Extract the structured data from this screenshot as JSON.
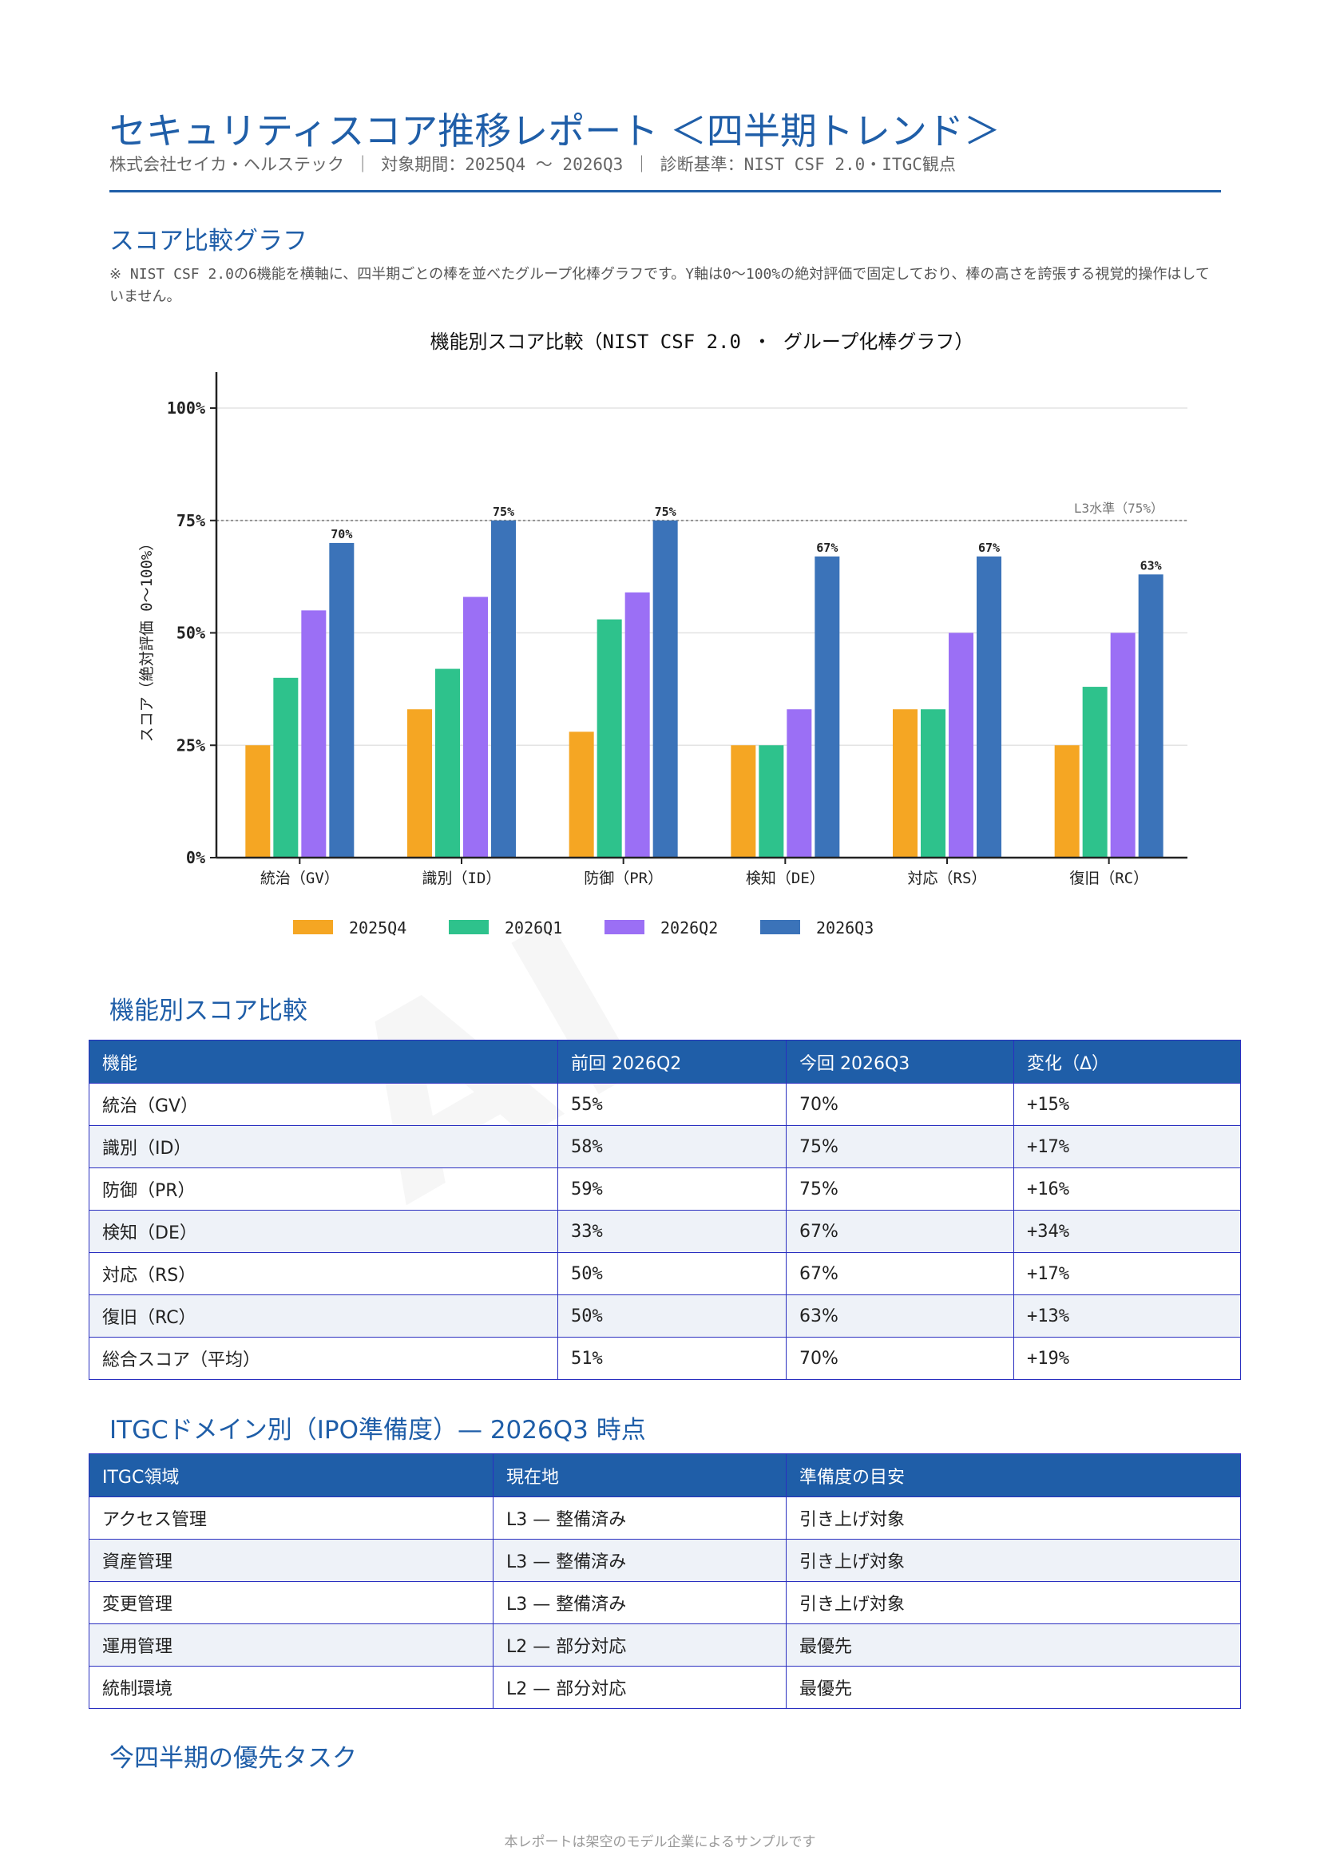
{
  "header": {
    "title": "セキュリティスコア推移レポート ＜四半期トレンド＞",
    "subtitle": "株式会社セイカ・ヘルステック ｜ 対象期間：2025Q4 〜 2026Q3 ｜ 診断基準：NIST CSF 2.0・ITGC観点"
  },
  "sections": {
    "chart_heading": "スコア比較グラフ",
    "chart_note": "※ NIST CSF 2.0の6機能を横軸に、四半期ごとの棒を並べたグループ化棒グラフです。Y軸は0〜100%の絶対評価で固定しており、棒の高さを誇張する視覚的操作はしていません。",
    "compare_heading": "機能別スコア比較",
    "itgc_heading": "ITGCドメイン別（IPO準備度）— 2026Q3 時点",
    "tasks_heading": "今四半期の優先タスク"
  },
  "chart_data": {
    "type": "bar",
    "title": "機能別スコア比較（NIST CSF 2.0 ・ グループ化棒グラフ）",
    "ylabel": "スコア（絶対評価 0〜100%）",
    "xlabel": "",
    "ylim": [
      0,
      108
    ],
    "yticks": [
      0,
      25,
      50,
      75,
      100
    ],
    "ytick_labels": [
      "0%",
      "25%",
      "50%",
      "75%",
      "100%"
    ],
    "grid": true,
    "legend_position": "bottom",
    "categories": [
      "統治（GV）",
      "識別（ID）",
      "防御（PR）",
      "検知（DE）",
      "対応（RS）",
      "復旧（RC）"
    ],
    "series": [
      {
        "name": "2025Q4",
        "color": "#f5a623",
        "values": [
          25,
          33,
          28,
          25,
          33,
          25
        ]
      },
      {
        "name": "2026Q1",
        "color": "#2ec28c",
        "values": [
          40,
          42,
          53,
          25,
          33,
          38
        ]
      },
      {
        "name": "2026Q2",
        "color": "#9b6ff5",
        "values": [
          55,
          58,
          59,
          33,
          50,
          50
        ]
      },
      {
        "name": "2026Q3",
        "color": "#3b73b9",
        "values": [
          70,
          75,
          75,
          67,
          67,
          63
        ]
      }
    ],
    "value_labels_series": "2026Q3",
    "value_labels": [
      "70%",
      "75%",
      "75%",
      "67%",
      "67%",
      "63%"
    ],
    "reference_line": {
      "value": 75,
      "label": "L3水準（75%）"
    }
  },
  "compare_table": {
    "headers": [
      "機能",
      "前回 2026Q2",
      "今回 2026Q3",
      "変化（Δ）"
    ],
    "rows": [
      [
        "統治（GV）",
        "55%",
        "70%",
        "+15%"
      ],
      [
        "識別（ID）",
        "58%",
        "75%",
        "+17%"
      ],
      [
        "防御（PR）",
        "59%",
        "75%",
        "+16%"
      ],
      [
        "検知（DE）",
        "33%",
        "67%",
        "+34%"
      ],
      [
        "対応（RS）",
        "50%",
        "67%",
        "+17%"
      ],
      [
        "復旧（RC）",
        "50%",
        "63%",
        "+13%"
      ],
      [
        "総合スコア（平均）",
        "51%",
        "70%",
        "+19%"
      ]
    ]
  },
  "itgc_table": {
    "headers": [
      "ITGC領域",
      "現在地",
      "準備度の目安"
    ],
    "rows": [
      [
        "アクセス管理",
        "L3 — 整備済み",
        "引き上げ対象"
      ],
      [
        "資産管理",
        "L3 — 整備済み",
        "引き上げ対象"
      ],
      [
        "変更管理",
        "L3 — 整備済み",
        "引き上げ対象"
      ],
      [
        "運用管理",
        "L2 — 部分対応",
        "最優先"
      ],
      [
        "統制環境",
        "L2 — 部分対応",
        "最優先"
      ]
    ]
  },
  "footer": "本レポートは架空のモデル企業によるサンプルです",
  "colors": {
    "accent": "#1f5ea8",
    "positive": "#22a35a",
    "table_border": "#2a2fc0"
  }
}
